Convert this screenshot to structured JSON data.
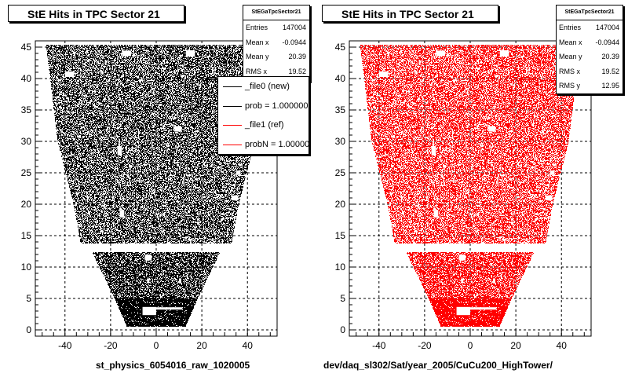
{
  "chart_data": [
    {
      "type": "scatter",
      "title": "StE Hits in TPC Sector 21",
      "xlabel": "st_physics_6054016_raw_1020005",
      "ylabel": "",
      "xlim": [
        -53,
        53
      ],
      "ylim": [
        -1,
        46
      ],
      "x_ticks": [
        -40,
        -20,
        0,
        20,
        40
      ],
      "y_ticks": [
        0,
        5,
        10,
        15,
        20,
        25,
        30,
        35,
        40,
        45
      ],
      "grid": true,
      "point_color": "#000000",
      "stats": {
        "name": "StEGaTpcSector21",
        "entries_label": "Entries",
        "entries": "147004",
        "mean_x_label": "Mean x",
        "mean_x": "-0.0944",
        "mean_y_label": "Mean y",
        "mean_y": "20.39",
        "rms_x_label": "RMS x",
        "rms_x": "19.52"
      },
      "legend": {
        "placement": "top-right",
        "entries": [
          {
            "label": "_file0 (new)",
            "color": "#000000"
          },
          {
            "label": "prob = 1.000000",
            "color": "#000000"
          },
          {
            "label": "_file1 (ref)",
            "color": "#ff0000"
          },
          {
            "label": "probN = 1.000000",
            "color": "#ff0000"
          }
        ]
      },
      "hit_region": {
        "x_halfwidth_at_y": [
          [
            0,
            12
          ],
          [
            5,
            18
          ],
          [
            12.5,
            28
          ],
          [
            14,
            33
          ],
          [
            20,
            36
          ],
          [
            30,
            43
          ],
          [
            45,
            48
          ]
        ],
        "gap_y": [
          12.5,
          13.8
        ]
      }
    },
    {
      "type": "scatter",
      "title": "StE Hits in TPC Sector 21",
      "xlabel": "dev/daq_sl302/Sat/year_2005/CuCu200_HighTower/",
      "ylabel": "",
      "xlim": [
        -53,
        53
      ],
      "ylim": [
        -1,
        46
      ],
      "x_ticks": [
        -40,
        -20,
        0,
        20,
        40
      ],
      "y_ticks": [
        0,
        5,
        10,
        15,
        20,
        25,
        30,
        35,
        40,
        45
      ],
      "grid": true,
      "point_color": "#ff0000",
      "stats": {
        "name": "StEGaTpcSector21",
        "entries_label": "Entries",
        "entries": "147004",
        "mean_x_label": "Mean x",
        "mean_x": "-0.0944",
        "mean_y_label": "Mean y",
        "mean_y": "20.39",
        "rms_x_label": "RMS x",
        "rms_x": "19.52",
        "rms_y_label": "RMS y",
        "rms_y": "12.95"
      },
      "hit_region": {
        "x_halfwidth_at_y": [
          [
            0,
            12
          ],
          [
            5,
            18
          ],
          [
            12.5,
            28
          ],
          [
            14,
            33
          ],
          [
            20,
            36
          ],
          [
            30,
            43
          ],
          [
            45,
            48
          ]
        ],
        "gap_y": [
          12.5,
          13.8
        ]
      }
    }
  ]
}
